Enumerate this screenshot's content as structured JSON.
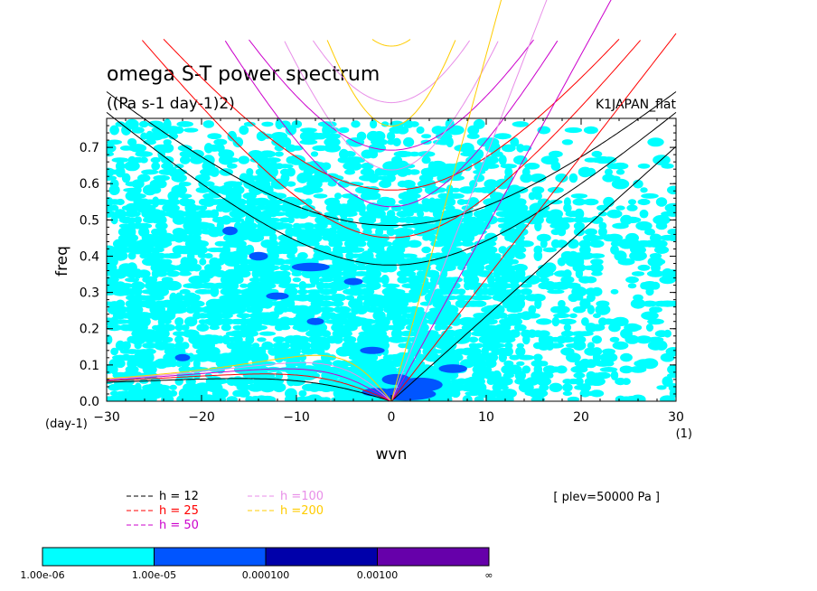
{
  "chart_data": {
    "type": "heatmap",
    "title": "omega S-T power spectrum",
    "subtitle": "((Pa s-1 day-1)2)",
    "dataset_label": "K1JAPAN_flat",
    "xlabel": "wvn",
    "ylabel": "freq",
    "x_unit": "(1)",
    "y_unit": "(day-1)",
    "xlim": [
      -30,
      30
    ],
    "ylim": [
      0,
      0.78
    ],
    "x_ticks": [
      "−30",
      "−20",
      "−10",
      "0",
      "10",
      "20",
      "30"
    ],
    "y_ticks": [
      "0.0",
      "0.1",
      "0.2",
      "0.3",
      "0.4",
      "0.5",
      "0.6",
      "0.7"
    ],
    "annotation": "[ plev=50000 Pa ]",
    "legend": [
      {
        "label": "h = 12",
        "color": "#000000"
      },
      {
        "label": "h = 25",
        "color": "#ff0000"
      },
      {
        "label": "h = 50",
        "color": "#cc00cc"
      },
      {
        "label": "h =100",
        "color": "#e88ee8"
      },
      {
        "label": "h =200",
        "color": "#ffcc00"
      }
    ],
    "colorbar": {
      "colors": [
        "#00ffff",
        "#0055ff",
        "#0000aa",
        "#6600aa"
      ],
      "labels": [
        "1.00e-06",
        "1.00e-05",
        "0.000100",
        "0.00100",
        "∞"
      ]
    }
  }
}
